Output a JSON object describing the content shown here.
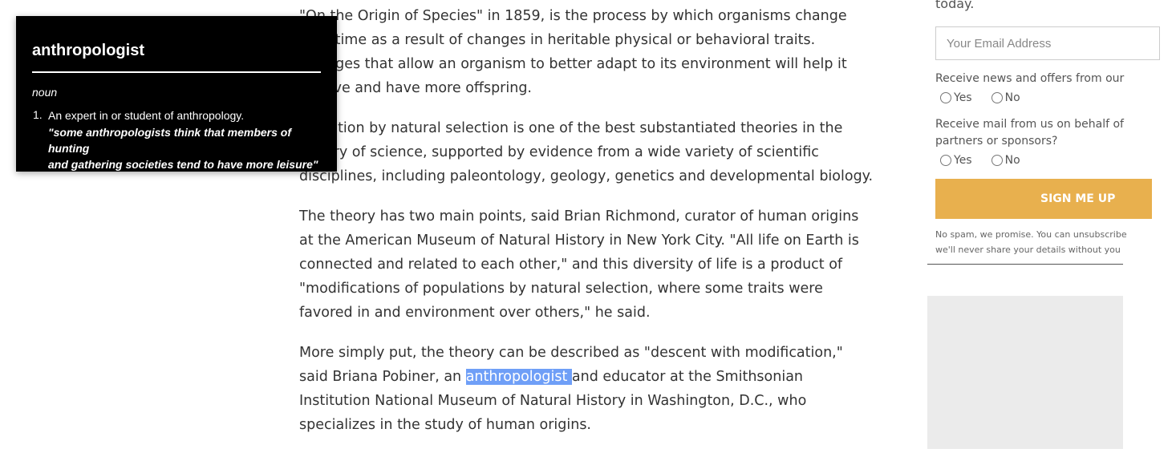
{
  "article": {
    "paragraphs": [
      {
        "lines": [
          "\"On the Origin of Species\" in 1859, is the process by which organisms change",
          "over time as a result of changes in heritable physical or behavioral traits.",
          "Changes that allow an organism to better adapt to its environment will help it",
          "survive and have more offspring."
        ]
      },
      {
        "lines": [
          "Evolution by natural selection is one of the best substantiated theories in the",
          "history of science, supported by evidence from a wide variety of scientific",
          "disciplines, including paleontology, geology, genetics and developmental biology."
        ]
      },
      {
        "lines": [
          "The theory has two main points, said Brian Richmond, curator of human origins",
          "at the American Museum of Natural History in New York City. \"All life on Earth is",
          "connected and related to each other,\" and this diversity of life is a product of",
          "\"modifications of populations by natural selection, where some traits were",
          "favored in and environment over others,\" he said."
        ]
      },
      {
        "line1": "More simply put, the theory can be described as \"descent with modification,\"",
        "line2_before": "said Briana Pobiner, an ",
        "line2_highlight": "anthropologist ",
        "line2_after": "and educator at the Smithsonian",
        "line3": "Institution National Museum of Natural History in Washington, D.C., who",
        "line4": "specializes in the study of human origins."
      }
    ]
  },
  "definition_popup": {
    "word": "anthropologist",
    "part_of_speech": "noun",
    "sense_number": "1.",
    "definition": "An expert in or student of anthropology.",
    "example_line1": "\"some anthropologists think that members of hunting",
    "example_line2": "and gathering societies tend to have more leisure\""
  },
  "newsletter": {
    "intro_tail": "today.",
    "email_placeholder": "Your Email Address",
    "question1": "Receive news and offers from our",
    "question2_line1": "Receive mail from us on behalf of",
    "question2_line2": "partners or sponsors?",
    "yes_label": "Yes",
    "no_label": "No",
    "button_label": "SIGN ME UP",
    "disclaimer_line1": "No spam, we promise. You can unsubscribe",
    "disclaimer_line2": "we'll never share your details without you"
  },
  "colors": {
    "highlight": "#6f9ff7",
    "button": "#e8b04e",
    "popup_bg": "#000000",
    "ad_bg": "#ebebeb"
  }
}
